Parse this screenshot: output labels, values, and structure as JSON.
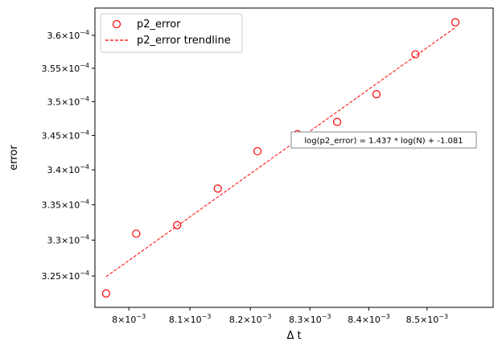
{
  "chart_data": {
    "type": "scatter",
    "xlabel": "Δ t",
    "ylabel": "error",
    "x_scale": "log",
    "y_scale": "log",
    "xlim": [
      0.007945,
      0.008615
    ],
    "ylim": [
      0.0003207,
      0.0003642
    ],
    "x_ticks": [
      {
        "value": 0.008,
        "mant": "8",
        "exp": "−3"
      },
      {
        "value": 0.0081,
        "mant": "8.1",
        "exp": "−3"
      },
      {
        "value": 0.0082,
        "mant": "8.2",
        "exp": "−3"
      },
      {
        "value": 0.0083,
        "mant": "8.3",
        "exp": "−3"
      },
      {
        "value": 0.0084,
        "mant": "8.4",
        "exp": "−3"
      },
      {
        "value": 0.0085,
        "mant": "8.5",
        "exp": "−3"
      }
    ],
    "y_ticks": [
      {
        "value": 0.000325,
        "mant": "3.25",
        "exp": "−4"
      },
      {
        "value": 0.00033,
        "mant": "3.3",
        "exp": "−4"
      },
      {
        "value": 0.000335,
        "mant": "3.35",
        "exp": "−4"
      },
      {
        "value": 0.00034,
        "mant": "3.4",
        "exp": "−4"
      },
      {
        "value": 0.000345,
        "mant": "3.45",
        "exp": "−4"
      },
      {
        "value": 0.00035,
        "mant": "3.5",
        "exp": "−4"
      },
      {
        "value": 0.000355,
        "mant": "3.55",
        "exp": "−4"
      },
      {
        "value": 0.00036,
        "mant": "3.6",
        "exp": "−4"
      }
    ],
    "series": [
      {
        "name": "p2_error",
        "kind": "scatter",
        "marker": "open-circle",
        "color": "#ff0000",
        "x": [
          0.007963,
          0.008012,
          0.008079,
          0.008146,
          0.008212,
          0.008279,
          0.008346,
          0.008413,
          0.00848,
          0.008549
        ],
        "y": [
          0.0003226,
          0.0003309,
          0.0003321,
          0.0003373,
          0.0003427,
          0.0003452,
          0.000347,
          0.0003511,
          0.0003571,
          0.000362
        ]
      },
      {
        "name": "p2_error trendline",
        "kind": "line",
        "style": "dashed",
        "color": "#ff0000",
        "x": [
          0.007963,
          0.008549
        ],
        "y": [
          0.0003249,
          0.0003612
        ]
      }
    ],
    "annotations": [
      {
        "text": "log(p2_error) = 1.437 * log(N) + -1.081",
        "x": 0.00847,
        "y": 0.000344
      }
    ],
    "legend": {
      "position": "top-left"
    },
    "grid": false
  }
}
